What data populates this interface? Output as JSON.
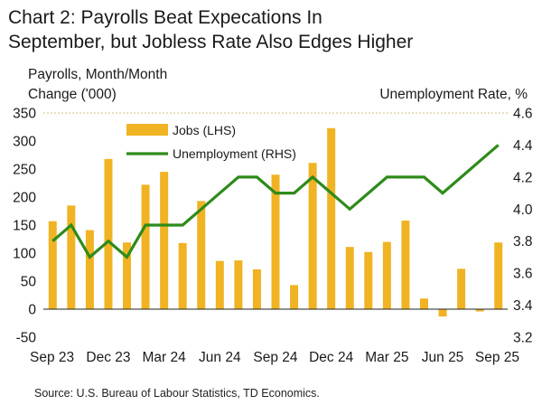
{
  "title_line1": "Chart 2: Payrolls Beat Expecations In",
  "title_line2": "September, but Jobless Rate Also Edges Higher",
  "source": "Source: U.S. Bureau of Labour Statistics, TD Economics.",
  "colors": {
    "bars": "#F0B323",
    "line": "#2E8B1A",
    "grid": "#D9CF9A"
  },
  "chart_data": {
    "type": "bar",
    "ylabel_left_line1": "Payrolls, Month/Month",
    "ylabel_left_line2": "Change ('000)",
    "ylabel_right": "Unemployment Rate, %",
    "ylim_left": [
      -50,
      350
    ],
    "ylim_right": [
      3.2,
      4.6
    ],
    "yticks_left": [
      "350",
      "300",
      "250",
      "200",
      "150",
      "100",
      "50",
      "0",
      "-50"
    ],
    "yticks_right": [
      "4.6",
      "4.4",
      "4.2",
      "4.0",
      "3.8",
      "3.6",
      "3.4",
      "3.2"
    ],
    "xtick_labels": [
      "Sep 23",
      "Dec 23",
      "Mar 24",
      "Jun 24",
      "Sep 24",
      "Dec 24",
      "Mar 25",
      "Jun 25",
      "Sep 25"
    ],
    "categories": [
      "Sep 23",
      "Oct 23",
      "Nov 23",
      "Dec 23",
      "Jan 24",
      "Feb 24",
      "Mar 24",
      "Apr 24",
      "May 24",
      "Jun 24",
      "Jul 24",
      "Aug 24",
      "Sep 24",
      "Oct 24",
      "Nov 24",
      "Dec 24",
      "Jan 25",
      "Feb 25",
      "Mar 25",
      "Apr 25",
      "May 25",
      "Jun 25",
      "Jul 25",
      "Aug 25",
      "Sep 25"
    ],
    "series": [
      {
        "name": "Jobs (LHS)",
        "type": "bar",
        "axis": "left",
        "values": [
          157,
          185,
          141,
          268,
          119,
          222,
          245,
          118,
          193,
          86,
          87,
          71,
          240,
          43,
          261,
          323,
          111,
          102,
          120,
          158,
          19,
          -13,
          72,
          -4,
          119
        ]
      },
      {
        "name": "Unemployment (RHS)",
        "type": "line",
        "axis": "right",
        "values": [
          3.8,
          3.9,
          3.7,
          3.8,
          3.7,
          3.9,
          3.9,
          3.9,
          4.0,
          4.1,
          4.2,
          4.2,
          4.1,
          4.1,
          4.2,
          4.1,
          4.0,
          4.1,
          4.2,
          4.2,
          4.2,
          4.1,
          4.2,
          4.3,
          4.4
        ]
      }
    ],
    "legend_position": "top-center",
    "grid": "top line only"
  }
}
